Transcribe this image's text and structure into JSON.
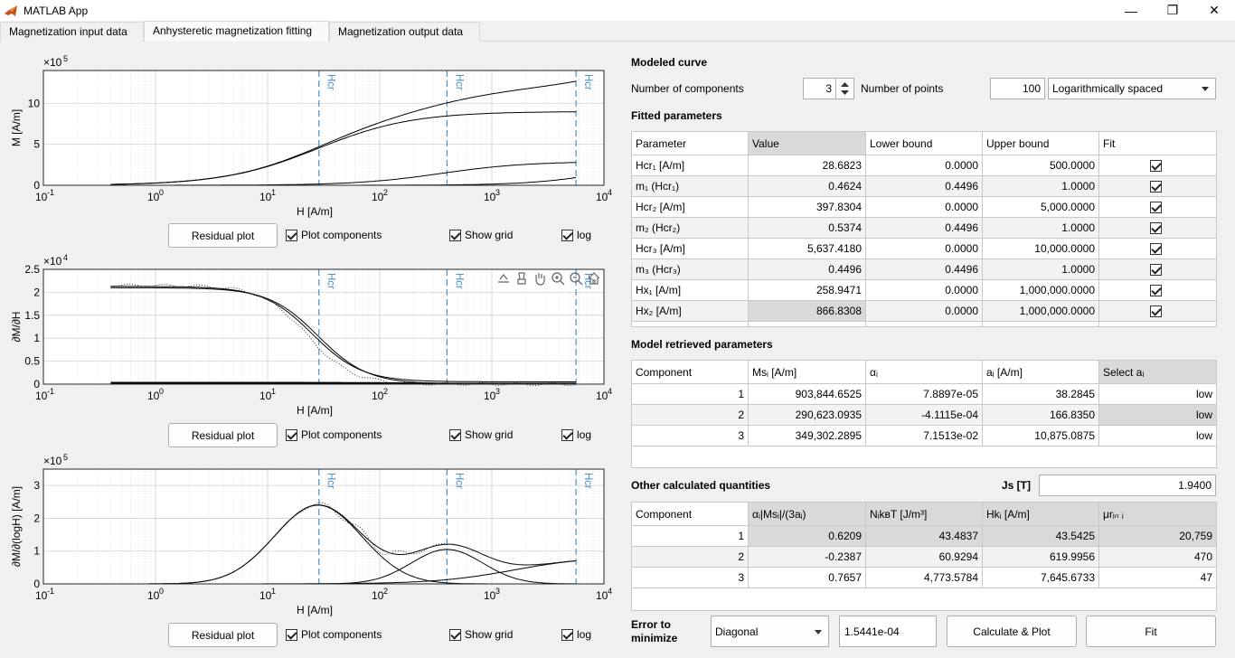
{
  "window": {
    "title": "MATLAB App",
    "minimize_glyph": "—",
    "maximize_glyph": "❐",
    "close_glyph": "✕"
  },
  "tabs": [
    {
      "label": "Magnetization input data"
    },
    {
      "label": "Anhysteretic magnetization fitting"
    },
    {
      "label": "Magnetization output data"
    }
  ],
  "plots": [
    {
      "ylabel": "M [A/m]",
      "xlabel": "H [A/m]",
      "exponent": "×10",
      "exponent_power": "5",
      "yticks": [
        "0",
        "5",
        "10"
      ],
      "marker_labels": [
        "Hcr",
        "Hcr",
        "Hcr"
      ]
    },
    {
      "ylabel": "∂M/∂H",
      "xlabel": "H [A/m]",
      "exponent": "×10",
      "exponent_power": "4",
      "yticks": [
        "0",
        "0.5",
        "1",
        "1.5",
        "2",
        "2.5"
      ],
      "marker_labels": [
        "Hcr",
        "Hcr",
        "Hcr"
      ]
    },
    {
      "ylabel": "∂M/∂(logH) [A/m]",
      "xlabel": "H [A/m]",
      "exponent": "×10",
      "exponent_power": "5",
      "yticks": [
        "0",
        "1",
        "2",
        "3"
      ],
      "marker_labels": [
        "Hcr",
        "Hcr",
        "Hcr"
      ]
    }
  ],
  "xticks": [
    {
      "base": "10",
      "exp": "-1"
    },
    {
      "base": "10",
      "exp": "0"
    },
    {
      "base": "10",
      "exp": "1"
    },
    {
      "base": "10",
      "exp": "2"
    },
    {
      "base": "10",
      "exp": "3"
    },
    {
      "base": "10",
      "exp": "4"
    }
  ],
  "plot_controls": {
    "residual_label": "Residual plot",
    "components_label": "Plot components",
    "grid_label": "Show grid",
    "log_label": "log"
  },
  "modeled_curve": {
    "header": "Modeled curve",
    "components_label": "Number of components",
    "components_value": "3",
    "points_label": "Number of points",
    "points_value": "100",
    "spacing": "Logarithmically spaced"
  },
  "fitted": {
    "header": "Fitted parameters",
    "columns": [
      "Parameter",
      "Value",
      "Lower bound",
      "Upper bound",
      "Fit"
    ],
    "rows": [
      {
        "param": "Hcr₁ [A/m]",
        "value": "28.6823",
        "lower": "0.0000",
        "upper": "500.0000",
        "fit": true
      },
      {
        "param": "m₁ (Hcr₁)",
        "value": "0.4624",
        "lower": "0.4496",
        "upper": "1.0000",
        "fit": true
      },
      {
        "param": "Hcr₂ [A/m]",
        "value": "397.8304",
        "lower": "0.0000",
        "upper": "5,000.0000",
        "fit": true
      },
      {
        "param": "m₂ (Hcr₂)",
        "value": "0.5374",
        "lower": "0.4496",
        "upper": "1.0000",
        "fit": true
      },
      {
        "param": "Hcr₃ [A/m]",
        "value": "5,637.4180",
        "lower": "0.0000",
        "upper": "10,000.0000",
        "fit": true
      },
      {
        "param": "m₃ (Hcr₃)",
        "value": "0.4496",
        "lower": "0.4496",
        "upper": "1.0000",
        "fit": true
      },
      {
        "param": "Hx₁ [A/m]",
        "value": "258.9471",
        "lower": "0.0000",
        "upper": "1,000,000.0000",
        "fit": true
      },
      {
        "param": "Hx₂ [A/m]",
        "value": "866.8308",
        "lower": "0.0000",
        "upper": "1,000,000.0000",
        "fit": true
      }
    ]
  },
  "retrieved": {
    "header": "Model retrieved parameters",
    "columns": [
      "Component",
      "Msᵢ [A/m]",
      "αᵢ",
      "aᵢ [A/m]",
      "Select aᵢ"
    ],
    "rows": [
      {
        "c": "1",
        "ms": "903,844.6525",
        "alpha": "7.8897e-05",
        "a": "38.2845",
        "sel": "low"
      },
      {
        "c": "2",
        "ms": "290,623.0935",
        "alpha": "-4.1115e-04",
        "a": "166.8350",
        "sel": "low"
      },
      {
        "c": "3",
        "ms": "349,302.2895",
        "alpha": "7.1513e-02",
        "a": "10,875.0875",
        "sel": "low"
      }
    ]
  },
  "other": {
    "header": "Other calculated quantities",
    "js_label": "Js [T]",
    "js_value": "1.9400",
    "columns": [
      "Component",
      "αᵢ|Msᵢ|/(3aᵢ)",
      "NᵢkʙT [J/m³]",
      "Hkᵢ [A/m]",
      "μrᵢₙ ᵢ"
    ],
    "rows": [
      {
        "c": "1",
        "v1": "0.6209",
        "v2": "43.4837",
        "v3": "43.5425",
        "v4": "20,759"
      },
      {
        "c": "2",
        "v1": "-0.2387",
        "v2": "60.9294",
        "v3": "619.9956",
        "v4": "470"
      },
      {
        "c": "3",
        "v1": "0.7657",
        "v2": "4,773.5784",
        "v3": "7,645.6733",
        "v4": "47"
      }
    ]
  },
  "bottom": {
    "error_label_1": "Error to",
    "error_label_2": "minimize",
    "error_method": "Diagonal",
    "error_value": "1.5441e-04",
    "calc_label": "Calculate & Plot",
    "fit_label": "Fit"
  },
  "colors": {
    "curve": "#000000",
    "marker": "#4a90c8",
    "grid": "#d0d0d0"
  }
}
